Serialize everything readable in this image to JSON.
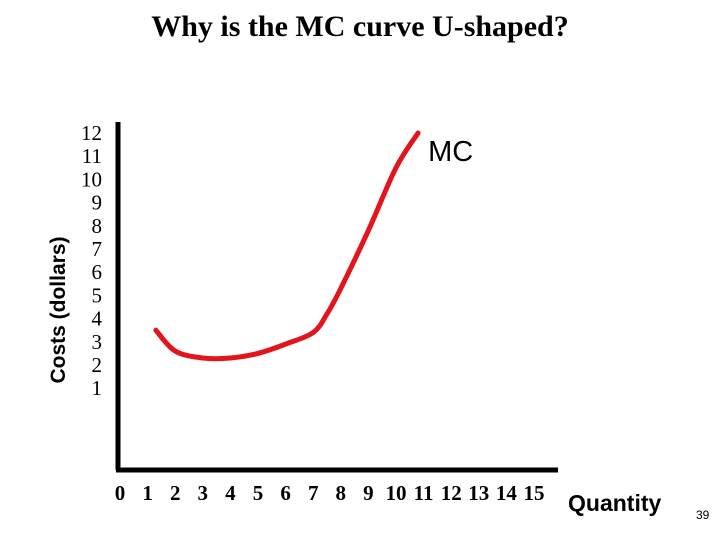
{
  "slide": {
    "title": "Why is the MC curve U-shaped?",
    "page_number": "39"
  },
  "chart_data": {
    "type": "line",
    "title": "Why is the MC curve U-shaped?",
    "xlabel": "Quantity",
    "ylabel": "Costs (dollars)",
    "x_ticks": [
      "0",
      "1",
      "2",
      "3",
      "4",
      "5",
      "6",
      "7",
      "8",
      "9",
      "10",
      "11",
      "12",
      "13",
      "14",
      "15"
    ],
    "y_ticks": [
      "12",
      "11",
      "10",
      "9",
      "8",
      "7",
      "6",
      "5",
      "4",
      "3",
      "2",
      "1"
    ],
    "xlim": [
      0,
      15
    ],
    "ylim": [
      0,
      12
    ],
    "grid": false,
    "series": [
      {
        "name": "MC",
        "color": "#e4141c",
        "x": [
          1.3,
          2.0,
          3.0,
          4.0,
          5.0,
          6.0,
          7.0,
          7.5,
          8.0,
          9.0,
          10.0,
          10.8
        ],
        "y": [
          3.5,
          2.6,
          2.3,
          2.3,
          2.5,
          2.9,
          3.4,
          4.2,
          5.3,
          7.8,
          10.5,
          12.0
        ]
      }
    ]
  }
}
